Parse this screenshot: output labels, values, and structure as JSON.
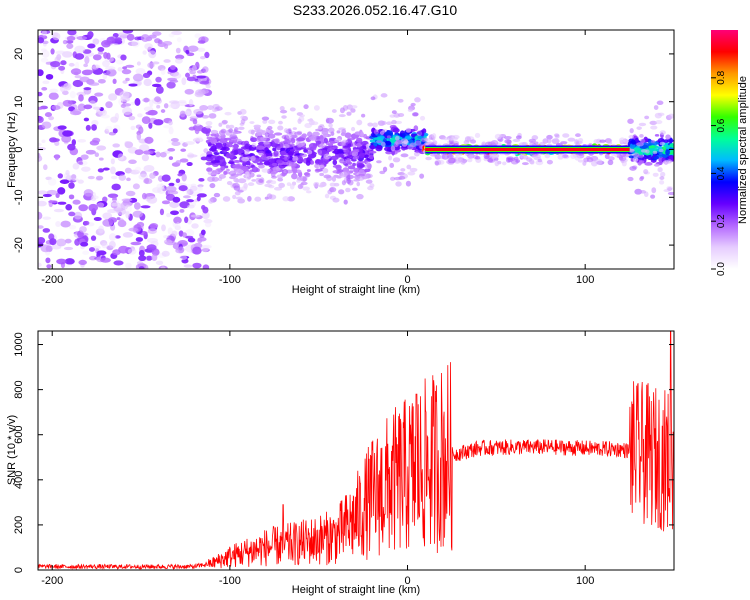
{
  "title": "S233.2026.052.16.47.G10",
  "chart_data": [
    {
      "type": "heatmap",
      "name": "spectrogram",
      "xlabel": "Height of straight line (km)",
      "ylabel": "Frequency (Hz)",
      "xlim": [
        -208,
        150
      ],
      "ylim": [
        -25,
        25
      ],
      "xticks": [
        -200,
        -100,
        0,
        100
      ],
      "yticks": [
        -20,
        -10,
        0,
        10,
        20
      ],
      "colorbar": {
        "label": "Normalized spectral amplitude",
        "range": [
          0.0,
          1.0
        ],
        "ticks": [
          0.0,
          0.2,
          0.4,
          0.6,
          0.8
        ],
        "colormap": [
          "#ffffff",
          "#e6ccff",
          "#b366ff",
          "#6600ff",
          "#0000ff",
          "#00bbff",
          "#00ff99",
          "#33ff00",
          "#ffff00",
          "#ff9900",
          "#ff0000",
          "#ff0077"
        ]
      },
      "regions": [
        {
          "x_range": [
            -208,
            -112
          ],
          "description": "diffuse noise",
          "amplitude": 0.1
        },
        {
          "x_range": [
            -112,
            -20
          ],
          "freq_center": -1,
          "amplitude": 0.25
        },
        {
          "x_range": [
            -20,
            10
          ],
          "freq_center": 2,
          "amplitude": 0.45
        },
        {
          "x_range": [
            10,
            125
          ],
          "freq_center": 0,
          "amplitude": 0.95
        },
        {
          "x_range": [
            125,
            150
          ],
          "freq_center": 0,
          "amplitude": 0.5
        }
      ]
    },
    {
      "type": "line",
      "name": "snr",
      "xlabel": "Height of straight line (km)",
      "ylabel": "SNR (10 * v/v)",
      "xlim": [
        -208,
        150
      ],
      "ylim": [
        0,
        1060
      ],
      "xticks": [
        -200,
        -100,
        0,
        100
      ],
      "yticks": [
        0,
        200,
        400,
        600,
        800,
        1000
      ],
      "color": "#ff0000",
      "envelope": {
        "x": [
          -208,
          -120,
          -110,
          -100,
          -80,
          -60,
          -40,
          -30,
          -20,
          -10,
          0,
          10,
          20,
          40,
          60,
          80,
          100,
          120,
          130,
          140,
          150
        ],
        "y": [
          15,
          15,
          30,
          60,
          100,
          120,
          150,
          220,
          320,
          380,
          420,
          460,
          500,
          540,
          545,
          545,
          540,
          535,
          520,
          500,
          480
        ]
      },
      "spikes": [
        {
          "x": -70,
          "y": 290
        },
        {
          "x": 5,
          "y": 780
        },
        {
          "x": 148,
          "y": 1060
        }
      ]
    }
  ]
}
